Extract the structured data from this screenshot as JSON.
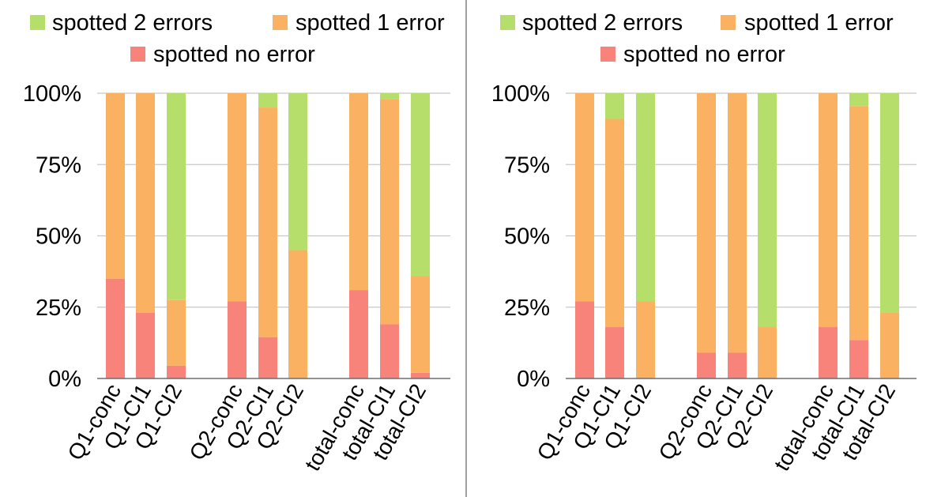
{
  "colors": {
    "spotted_2_errors": "#b5de6a",
    "spotted_1_error": "#fbb162",
    "spotted_no_error": "#f7837a",
    "gridline": "#c8c8c8",
    "divider": "#808080"
  },
  "chart_data": [
    {
      "type": "bar",
      "stacked": true,
      "legend": {
        "placement": "top",
        "entries": [
          "spotted 2 errors",
          "spotted 1 error",
          "spotted no error"
        ]
      },
      "y_ticks": [
        "0%",
        "25%",
        "50%",
        "75%",
        "100%"
      ],
      "ylim": [
        0,
        100
      ],
      "grid": true,
      "groups": [
        {
          "categories": [
            "Q1-conc",
            "Q1-CI1",
            "Q1-CI2"
          ]
        },
        {
          "categories": [
            "Q2-conc",
            "Q2-CI1",
            "Q2-CI2"
          ]
        },
        {
          "categories": [
            "total-conc",
            "total-CI1",
            "total-CI2"
          ]
        }
      ],
      "series": [
        {
          "name": "spotted no error",
          "values": [
            35,
            23,
            4.5,
            27,
            14.5,
            0,
            31,
            19,
            2
          ]
        },
        {
          "name": "spotted 1 error",
          "values": [
            65,
            77,
            23,
            73,
            80.5,
            45,
            69,
            79,
            34
          ]
        },
        {
          "name": "spotted 2 errors",
          "values": [
            0,
            0,
            72.5,
            0,
            5,
            55,
            0,
            2,
            64
          ]
        }
      ]
    },
    {
      "type": "bar",
      "stacked": true,
      "legend": {
        "placement": "top",
        "entries": [
          "spotted 2 errors",
          "spotted 1 error",
          "spotted no error"
        ]
      },
      "y_ticks": [
        "0%",
        "25%",
        "50%",
        "75%",
        "100%"
      ],
      "ylim": [
        0,
        100
      ],
      "grid": true,
      "groups": [
        {
          "categories": [
            "Q1-conc",
            "Q1-CI1",
            "Q1-CI2"
          ]
        },
        {
          "categories": [
            "Q2-conc",
            "Q2-CI1",
            "Q2-CI2"
          ]
        },
        {
          "categories": [
            "total-conc",
            "total-CI1",
            "total-CI2"
          ]
        }
      ],
      "series": [
        {
          "name": "spotted no error",
          "values": [
            27,
            18,
            0,
            9,
            9,
            0,
            18,
            13.5,
            0
          ]
        },
        {
          "name": "spotted 1 error",
          "values": [
            73,
            73,
            27,
            91,
            91,
            18,
            82,
            82,
            23
          ]
        },
        {
          "name": "spotted 2 errors",
          "values": [
            0,
            9,
            73,
            0,
            0,
            82,
            0,
            4.5,
            77
          ]
        }
      ]
    }
  ]
}
